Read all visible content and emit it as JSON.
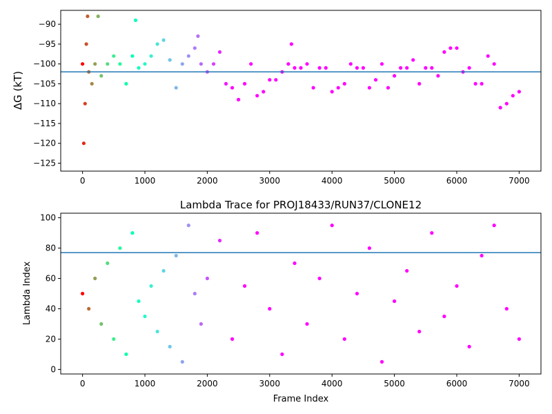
{
  "chart_data": [
    {
      "type": "scatter",
      "title": "",
      "xlabel": "",
      "ylabel": "ΔG (kT)",
      "xlim": [
        -350,
        7350
      ],
      "ylim": [
        -127,
        -86.5
      ],
      "xticks": [
        0,
        1000,
        2000,
        3000,
        4000,
        5000,
        6000,
        7000
      ],
      "yticks": [
        -90,
        -95,
        -100,
        -105,
        -110,
        -115,
        -120,
        -125
      ],
      "hline": -102,
      "colormap": "rainbow (red at early frames → violet at late frames)",
      "marker_size": "small dots",
      "grid": false,
      "series": [
        {
          "x": [
            0,
            20,
            40,
            60,
            80,
            100,
            150,
            200,
            250,
            300,
            400,
            500,
            600,
            700,
            800,
            850,
            900,
            1000,
            1100,
            1200,
            1300,
            1400,
            1500,
            1600,
            1700,
            1800,
            1850,
            1900,
            2000,
            2100,
            2200,
            2300,
            2400,
            2500,
            2600,
            2700,
            2800,
            2900,
            3000,
            3100,
            3200,
            3300,
            3350,
            3400,
            3500,
            3600,
            3700,
            3800,
            3900,
            4000,
            4100,
            4200,
            4300,
            4400,
            4500,
            4600,
            4700,
            4800,
            4900,
            5000,
            5100,
            5200,
            5300,
            5400,
            5500,
            5600,
            5700,
            5800,
            5900,
            6000,
            6100,
            6200,
            6300,
            6400,
            6500,
            6600,
            6700,
            6800,
            6900,
            7000
          ],
          "y": [
            -100,
            -120,
            -110,
            -95,
            -88,
            -102,
            -105,
            -100,
            -88,
            -103,
            -100,
            -98,
            -100,
            -105,
            -98,
            -89,
            -101,
            -100,
            -98,
            -95,
            -94,
            -99,
            -106,
            -100,
            -98,
            -96,
            -93,
            -100,
            -102,
            -100,
            -97,
            -105,
            -106,
            -109,
            -105,
            -100,
            -108,
            -107,
            -104,
            -104,
            -102,
            -100,
            -95,
            -101,
            -101,
            -100,
            -106,
            -101,
            -101,
            -107,
            -106,
            -105,
            -100,
            -101,
            -101,
            -106,
            -104,
            -100,
            -106,
            -103,
            -101,
            -101,
            -99,
            -105,
            -101,
            -101,
            -103,
            -97,
            -96,
            -96,
            -102,
            -101,
            -105,
            -105,
            -98,
            -100,
            -111,
            -110,
            -108,
            -107
          ]
        }
      ]
    },
    {
      "type": "scatter",
      "title": "Lambda Trace for PROJ18433/RUN37/CLONE12",
      "xlabel": "Frame Index",
      "ylabel": "Lambda Index",
      "xlim": [
        -350,
        7350
      ],
      "ylim": [
        -3,
        103
      ],
      "xticks": [
        0,
        1000,
        2000,
        3000,
        4000,
        5000,
        6000,
        7000
      ],
      "yticks": [
        0,
        20,
        40,
        60,
        80,
        100
      ],
      "hline": 77,
      "colormap": "rainbow (red at early frames → violet at late frames)",
      "marker_size": "small dots",
      "grid": false,
      "series": [
        {
          "x": [
            0,
            100,
            200,
            300,
            400,
            500,
            600,
            700,
            800,
            900,
            1000,
            1100,
            1200,
            1300,
            1400,
            1500,
            1600,
            1700,
            1800,
            1900,
            2000,
            2200,
            2400,
            2600,
            2800,
            3000,
            3200,
            3400,
            3600,
            3800,
            4000,
            4200,
            4400,
            4600,
            4800,
            5000,
            5200,
            5400,
            5600,
            5800,
            6000,
            6200,
            6400,
            6600,
            6800,
            7000
          ],
          "y": [
            50,
            40,
            60,
            30,
            70,
            20,
            80,
            10,
            90,
            45,
            35,
            55,
            25,
            65,
            15,
            75,
            5,
            95,
            50,
            30,
            60,
            85,
            20,
            55,
            90,
            40,
            10,
            70,
            30,
            60,
            95,
            20,
            50,
            80,
            5,
            45,
            65,
            25,
            90,
            35,
            55,
            15,
            75,
            95,
            40,
            20
          ]
        }
      ]
    }
  ]
}
